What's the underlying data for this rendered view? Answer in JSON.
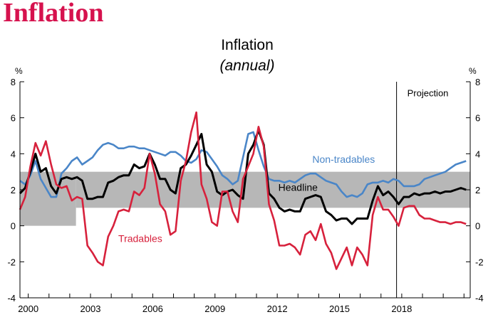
{
  "page": {
    "heading": "Inflation"
  },
  "colors": {
    "headline": "#000000",
    "tradables": "#d7213c",
    "non_tradables": "#4a86c8",
    "target_band": "#b7b7b7",
    "heading": "#d6124e"
  },
  "chart_data": {
    "type": "line",
    "title": "Inflation",
    "subtitle": "(annual)",
    "ylabel_left": "%",
    "ylabel_right": "%",
    "ylim": [
      -4,
      8
    ],
    "xlim": [
      1999.6,
      2021.3
    ],
    "yticks": [
      -4,
      -2,
      0,
      2,
      4,
      6,
      8
    ],
    "xticks": [
      {
        "value": 2000,
        "label": "2000"
      },
      {
        "value": 2003,
        "label": "2003"
      },
      {
        "value": 2006,
        "label": "2006"
      },
      {
        "value": 2009,
        "label": "2009"
      },
      {
        "value": 2012,
        "label": "2012"
      },
      {
        "value": 2015,
        "label": "2015"
      },
      {
        "value": 2018,
        "label": "2018"
      }
    ],
    "projection": {
      "x": 2017.75,
      "label": "Projection"
    },
    "target_band": [
      {
        "x0": 1999.6,
        "x1": 2002.3,
        "y0": 0,
        "y1": 3
      },
      {
        "x0": 2002.3,
        "x1": 2021.3,
        "y0": 1,
        "y1": 3
      }
    ],
    "annotations": [
      {
        "series": "Non-tradables",
        "text": "Non-tradables",
        "x": 2015.2,
        "y": 3.5
      },
      {
        "series": "Headline",
        "text": "Headline",
        "x": 2013.0,
        "y": 1.95
      },
      {
        "series": "Tradables",
        "text": "Tradables",
        "x": 2005.4,
        "y": -0.9
      }
    ],
    "series": [
      {
        "name": "Non-tradables",
        "color": "#4a86c8",
        "x": [
          1999.6,
          1999.85,
          2000.1,
          2000.35,
          2000.6,
          2000.85,
          2001.1,
          2001.35,
          2001.6,
          2001.85,
          2002.1,
          2002.35,
          2002.6,
          2002.85,
          2003.1,
          2003.35,
          2003.6,
          2003.85,
          2004.1,
          2004.35,
          2004.6,
          2004.85,
          2005.1,
          2005.35,
          2005.6,
          2005.85,
          2006.1,
          2006.35,
          2006.6,
          2006.85,
          2007.1,
          2007.35,
          2007.6,
          2007.85,
          2008.1,
          2008.35,
          2008.6,
          2008.85,
          2009.1,
          2009.35,
          2009.6,
          2009.85,
          2010.1,
          2010.35,
          2010.6,
          2010.85,
          2011.1,
          2011.35,
          2011.6,
          2011.85,
          2012.1,
          2012.35,
          2012.6,
          2012.85,
          2013.1,
          2013.35,
          2013.6,
          2013.85,
          2014.1,
          2014.35,
          2014.6,
          2014.85,
          2015.1,
          2015.35,
          2015.6,
          2015.85,
          2016.1,
          2016.35,
          2016.6,
          2016.85,
          2017.1,
          2017.35,
          2017.6,
          2017.85,
          2018.1,
          2018.35,
          2018.6,
          2018.85,
          2019.1,
          2019.35,
          2019.6,
          2019.85,
          2020.1,
          2020.35,
          2020.6,
          2020.85,
          2021.1
        ],
        "values": [
          2.5,
          2.3,
          2.8,
          3.6,
          2.6,
          2.1,
          1.6,
          1.6,
          2.9,
          3.2,
          3.6,
          3.8,
          3.4,
          3.6,
          3.8,
          4.2,
          4.5,
          4.6,
          4.5,
          4.3,
          4.3,
          4.4,
          4.4,
          4.3,
          4.3,
          4.2,
          4.1,
          4.0,
          3.9,
          4.1,
          4.1,
          3.9,
          3.6,
          3.5,
          3.7,
          4.2,
          4.1,
          3.7,
          3.3,
          2.8,
          2.6,
          2.3,
          2.5,
          3.8,
          5.1,
          5.2,
          4.2,
          3.3,
          2.6,
          2.5,
          2.5,
          2.4,
          2.5,
          2.4,
          2.6,
          2.8,
          2.9,
          2.9,
          2.7,
          2.5,
          2.4,
          2.3,
          1.9,
          1.6,
          1.7,
          1.6,
          1.8,
          2.3,
          2.4,
          2.4,
          2.5,
          2.4,
          2.6,
          2.5,
          2.2,
          2.2,
          2.2,
          2.3,
          2.6,
          2.7,
          2.8,
          2.9,
          3.0,
          3.2,
          3.4,
          3.5,
          3.6
        ]
      },
      {
        "name": "Headline",
        "color": "#000000",
        "x": [
          1999.6,
          1999.85,
          2000.1,
          2000.35,
          2000.6,
          2000.85,
          2001.1,
          2001.35,
          2001.6,
          2001.85,
          2002.1,
          2002.35,
          2002.6,
          2002.85,
          2003.1,
          2003.35,
          2003.6,
          2003.85,
          2004.1,
          2004.35,
          2004.6,
          2004.85,
          2005.1,
          2005.35,
          2005.6,
          2005.85,
          2006.1,
          2006.35,
          2006.6,
          2006.85,
          2007.1,
          2007.35,
          2007.6,
          2007.85,
          2008.1,
          2008.35,
          2008.6,
          2008.85,
          2009.1,
          2009.35,
          2009.6,
          2009.85,
          2010.1,
          2010.35,
          2010.6,
          2010.85,
          2011.1,
          2011.35,
          2011.6,
          2011.85,
          2012.1,
          2012.35,
          2012.6,
          2012.85,
          2013.1,
          2013.35,
          2013.6,
          2013.85,
          2014.1,
          2014.35,
          2014.6,
          2014.85,
          2015.1,
          2015.35,
          2015.6,
          2015.85,
          2016.1,
          2016.35,
          2016.6,
          2016.85,
          2017.1,
          2017.35,
          2017.6,
          2017.85,
          2018.1,
          2018.35,
          2018.6,
          2018.85,
          2019.1,
          2019.35,
          2019.6,
          2019.85,
          2020.1,
          2020.35,
          2020.6,
          2020.85,
          2021.1
        ],
        "values": [
          1.8,
          2.1,
          3.0,
          4.0,
          3.0,
          3.2,
          2.2,
          1.8,
          2.6,
          2.7,
          2.6,
          2.7,
          2.5,
          1.5,
          1.5,
          1.6,
          1.6,
          2.4,
          2.5,
          2.7,
          2.8,
          2.8,
          3.4,
          3.2,
          3.3,
          4.0,
          3.4,
          2.6,
          2.6,
          2.0,
          1.8,
          3.2,
          3.4,
          3.9,
          4.5,
          5.1,
          3.4,
          3.0,
          1.9,
          1.7,
          1.9,
          2.0,
          1.7,
          1.5,
          4.0,
          4.5,
          5.3,
          4.5,
          1.8,
          1.5,
          1.0,
          0.8,
          0.9,
          0.8,
          0.8,
          1.5,
          1.6,
          1.7,
          1.6,
          0.8,
          0.6,
          0.3,
          0.4,
          0.4,
          0.1,
          0.4,
          0.4,
          0.4,
          1.4,
          2.2,
          1.7,
          1.9,
          1.6,
          1.2,
          1.6,
          1.6,
          1.8,
          1.7,
          1.8,
          1.8,
          1.9,
          1.8,
          1.9,
          1.9,
          2.0,
          2.1,
          2.0
        ]
      },
      {
        "name": "Tradables",
        "color": "#d7213c",
        "x": [
          1999.6,
          1999.85,
          2000.1,
          2000.35,
          2000.6,
          2000.85,
          2001.1,
          2001.35,
          2001.6,
          2001.85,
          2002.1,
          2002.35,
          2002.6,
          2002.85,
          2003.1,
          2003.35,
          2003.6,
          2003.85,
          2004.1,
          2004.35,
          2004.6,
          2004.85,
          2005.1,
          2005.35,
          2005.6,
          2005.85,
          2006.1,
          2006.35,
          2006.6,
          2006.85,
          2007.1,
          2007.35,
          2007.6,
          2007.85,
          2008.1,
          2008.35,
          2008.6,
          2008.85,
          2009.1,
          2009.35,
          2009.6,
          2009.85,
          2010.1,
          2010.35,
          2010.6,
          2010.85,
          2011.1,
          2011.35,
          2011.6,
          2011.85,
          2012.1,
          2012.35,
          2012.6,
          2012.85,
          2013.1,
          2013.35,
          2013.6,
          2013.85,
          2014.1,
          2014.35,
          2014.6,
          2014.85,
          2015.1,
          2015.35,
          2015.6,
          2015.85,
          2016.1,
          2016.35,
          2016.6,
          2016.85,
          2017.1,
          2017.35,
          2017.6,
          2017.85,
          2018.1,
          2018.35,
          2018.6,
          2018.85,
          2019.1,
          2019.35,
          2019.6,
          2019.85,
          2020.1,
          2020.35,
          2020.6,
          2020.85,
          2021.1
        ],
        "values": [
          0.9,
          1.6,
          3.3,
          4.6,
          3.9,
          4.7,
          3.4,
          2.3,
          2.1,
          2.2,
          1.4,
          1.6,
          1.5,
          -1.1,
          -1.5,
          -2.0,
          -2.2,
          -0.6,
          0.0,
          0.8,
          0.9,
          0.8,
          1.9,
          1.7,
          2.1,
          4.0,
          2.9,
          1.2,
          0.8,
          -0.5,
          -0.3,
          2.5,
          3.6,
          5.2,
          6.3,
          2.3,
          1.5,
          0.2,
          0.0,
          1.9,
          1.9,
          0.8,
          0.2,
          2.6,
          3.3,
          4.0,
          5.5,
          4.4,
          1.2,
          0.3,
          -1.1,
          -1.1,
          -1.0,
          -1.2,
          -1.6,
          -0.5,
          -0.3,
          -0.8,
          0.1,
          -1.0,
          -1.5,
          -2.4,
          -1.8,
          -1.2,
          -2.2,
          -1.2,
          -1.6,
          -2.2,
          0.6,
          1.6,
          0.9,
          0.9,
          0.5,
          0.0,
          1.0,
          1.1,
          1.1,
          0.6,
          0.4,
          0.4,
          0.3,
          0.2,
          0.2,
          0.1,
          0.2,
          0.2,
          0.1
        ]
      }
    ]
  }
}
